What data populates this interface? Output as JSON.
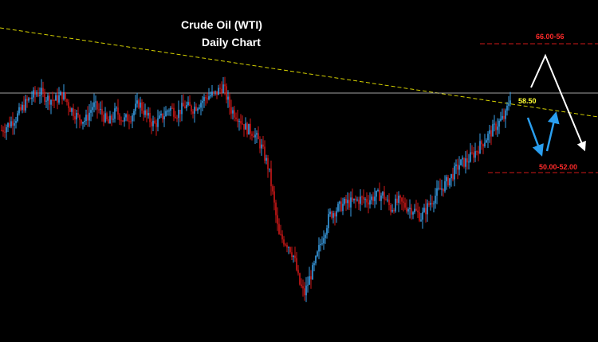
{
  "chart_data": {
    "type": "candlestick",
    "title": "Crude Oil (WTI)",
    "subtitle": "Daily Chart",
    "x_axis": "trading days (unlabeled)",
    "y_axis": "price (unlabeled)",
    "grid": false,
    "legend": "none",
    "colors": {
      "background": "#000000",
      "up_candle": "#3aa0e8",
      "down_candle": "#d01818",
      "trendline": "#d4d000",
      "level_line": "#e8e8e8",
      "resistance_zone": "#d01818",
      "support_zone": "#d01818",
      "projection_up": "#ffffff",
      "projection_down": "#2a9ff0",
      "price_label": "#ffff33"
    },
    "levels": {
      "current": {
        "label": "58.50",
        "value": 58.5
      },
      "upper_target": {
        "label": "66.00-56",
        "value": 66.0
      },
      "lower_target": {
        "label": "50.00-52.00",
        "value": 51.0
      }
    },
    "descending_trendline": {
      "style": "dashed",
      "direction": "down"
    },
    "projections": [
      {
        "name": "white-path",
        "values": [
          58.5,
          64.0,
          52.5
        ]
      },
      {
        "name": "blue-path",
        "values": [
          58.5,
          52.0,
          57.0
        ]
      }
    ],
    "price_path": [
      [
        0,
        55.0
      ],
      [
        6,
        55.6
      ],
      [
        12,
        56.3
      ],
      [
        18,
        57.4
      ],
      [
        24,
        58.2
      ],
      [
        30,
        58.6
      ],
      [
        36,
        58.0
      ],
      [
        42,
        57.8
      ],
      [
        48,
        58.4
      ],
      [
        54,
        57.1
      ],
      [
        60,
        56.2
      ],
      [
        66,
        55.9
      ],
      [
        72,
        57.4
      ],
      [
        78,
        56.7
      ],
      [
        84,
        55.6
      ],
      [
        90,
        56.8
      ],
      [
        96,
        55.9
      ],
      [
        102,
        56.4
      ],
      [
        108,
        57.6
      ],
      [
        114,
        56.3
      ],
      [
        120,
        55.5
      ],
      [
        126,
        56.2
      ],
      [
        132,
        57.1
      ],
      [
        138,
        56.6
      ],
      [
        144,
        57.3
      ],
      [
        150,
        57.0
      ],
      [
        156,
        57.6
      ],
      [
        162,
        58.2
      ],
      [
        168,
        58.4
      ],
      [
        174,
        59.2
      ],
      [
        180,
        57.0
      ],
      [
        186,
        56.3
      ],
      [
        192,
        55.2
      ],
      [
        198,
        54.8
      ],
      [
        204,
        53.5
      ],
      [
        210,
        51.4
      ],
      [
        214,
        48.3
      ],
      [
        218,
        45.0
      ],
      [
        222,
        44.6
      ],
      [
        226,
        44.1
      ],
      [
        230,
        43.0
      ],
      [
        234,
        40.6
      ],
      [
        238,
        39.5
      ],
      [
        242,
        41.0
      ],
      [
        246,
        42.2
      ],
      [
        250,
        44.0
      ],
      [
        254,
        45.5
      ],
      [
        258,
        47.0
      ],
      [
        264,
        47.6
      ],
      [
        270,
        48.1
      ],
      [
        276,
        48.2
      ],
      [
        282,
        48.5
      ],
      [
        288,
        48.4
      ],
      [
        294,
        48.8
      ],
      [
        300,
        48.9
      ],
      [
        306,
        47.6
      ],
      [
        312,
        48.3
      ],
      [
        318,
        47.8
      ],
      [
        324,
        47.5
      ],
      [
        330,
        46.8
      ],
      [
        336,
        48.0
      ],
      [
        342,
        49.0
      ],
      [
        348,
        49.8
      ],
      [
        354,
        50.7
      ],
      [
        360,
        51.8
      ],
      [
        366,
        52.1
      ],
      [
        372,
        52.9
      ],
      [
        378,
        53.8
      ],
      [
        384,
        54.7
      ],
      [
        390,
        55.6
      ],
      [
        396,
        56.3
      ],
      [
        400,
        58.2
      ]
    ]
  }
}
